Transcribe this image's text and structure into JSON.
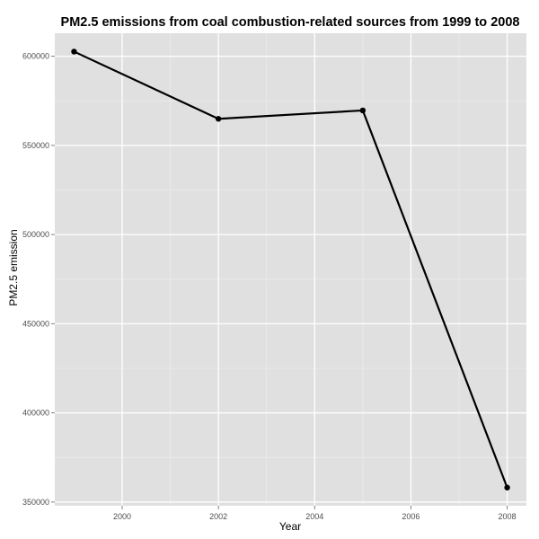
{
  "chart_data": {
    "type": "line",
    "title": "PM2.5 emissions from coal combustion-related sources from 1999 to 2008",
    "xlabel": "Year",
    "ylabel": "PM2.5 emission",
    "x": [
      1999,
      2002,
      2005,
      2008
    ],
    "series": [
      {
        "values": [
          602600,
          564900,
          569600,
          358100
        ]
      }
    ],
    "xticks": [
      2000,
      2002,
      2004,
      2006,
      2008
    ],
    "xtick_labels": [
      "2000",
      "2002",
      "2004",
      "2006",
      "2008"
    ],
    "yticks": [
      350000,
      400000,
      450000,
      500000,
      550000,
      600000
    ],
    "ytick_labels": [
      "350000",
      "400000",
      "450000",
      "500000",
      "550000",
      "600000"
    ],
    "xlim": [
      1998.6,
      2008.4
    ],
    "ylim": [
      347900,
      612900
    ],
    "grid": true,
    "legend": "none",
    "colors": {
      "panel_background": "#e0e0e0",
      "grid_major": "#ffffff",
      "grid_minor": "#ececec",
      "line": "#000000",
      "point": "#000000"
    }
  }
}
